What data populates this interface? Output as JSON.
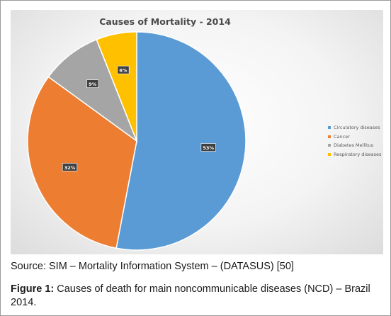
{
  "chart_data": {
    "type": "pie",
    "title": "Causes of Mortality - 2014",
    "categories": [
      "Circulatory diseases",
      "Cancer",
      "Diabetes Mellitus",
      "Respiratory diseases"
    ],
    "values": [
      53,
      32,
      9,
      6
    ],
    "data_labels": [
      "53%",
      "32%",
      "9%",
      "6%"
    ],
    "colors": [
      "#5b9bd5",
      "#ed7d31",
      "#a5a5a5",
      "#ffc000"
    ],
    "legend_position": "right"
  },
  "source_text": "Source: SIM – Mortality Information System – (DATASUS) [50]",
  "caption": {
    "label": "Figure 1:",
    "text": " Causes of death for main noncommunicable diseases (NCD) – Brazil 2014."
  }
}
